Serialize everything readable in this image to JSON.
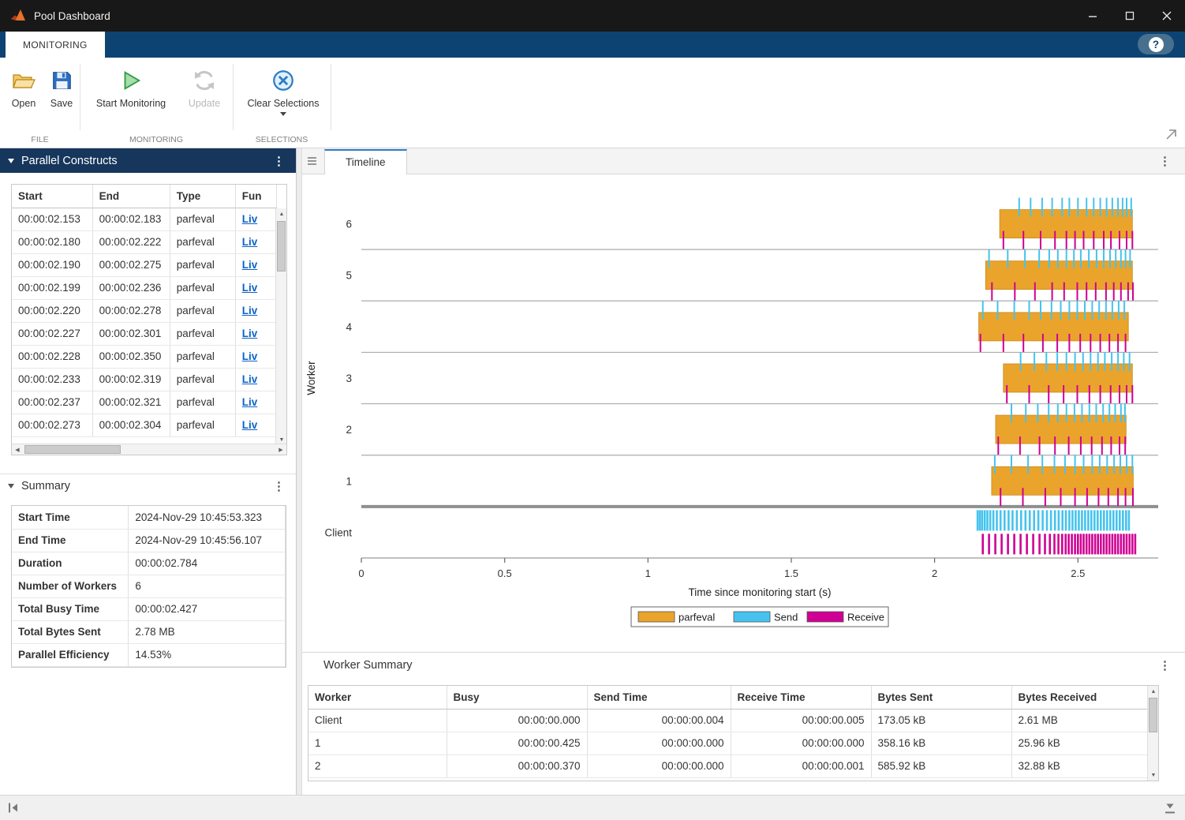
{
  "window": {
    "title": "Pool Dashboard"
  },
  "icons": {
    "kebab": "⋮",
    "help": "?",
    "arrow_up": "▲",
    "arrow_down": "▼",
    "arrow_left": "◀",
    "arrow_right": "▶"
  },
  "ribbon": {
    "active_tab": "MONITORING",
    "groups": [
      {
        "name": "FILE",
        "buttons": [
          {
            "label": "Open"
          },
          {
            "label": "Save"
          }
        ]
      },
      {
        "name": "MONITORING",
        "buttons": [
          {
            "label": "Start Monitoring"
          },
          {
            "label": "Update",
            "enabled": false
          }
        ]
      },
      {
        "name": "SELECTIONS",
        "buttons": [
          {
            "label": "Clear Selections",
            "dropdown": true
          }
        ]
      }
    ]
  },
  "parallel_constructs": {
    "title": "Parallel Constructs",
    "columns": [
      "Start",
      "End",
      "Type",
      "Fun"
    ],
    "rows": [
      [
        "00:00:02.153",
        "00:00:02.183",
        "parfeval",
        "Liv"
      ],
      [
        "00:00:02.180",
        "00:00:02.222",
        "parfeval",
        "Liv"
      ],
      [
        "00:00:02.190",
        "00:00:02.275",
        "parfeval",
        "Liv"
      ],
      [
        "00:00:02.199",
        "00:00:02.236",
        "parfeval",
        "Liv"
      ],
      [
        "00:00:02.220",
        "00:00:02.278",
        "parfeval",
        "Liv"
      ],
      [
        "00:00:02.227",
        "00:00:02.301",
        "parfeval",
        "Liv"
      ],
      [
        "00:00:02.228",
        "00:00:02.350",
        "parfeval",
        "Liv"
      ],
      [
        "00:00:02.233",
        "00:00:02.319",
        "parfeval",
        "Liv"
      ],
      [
        "00:00:02.237",
        "00:00:02.321",
        "parfeval",
        "Liv"
      ],
      [
        "00:00:02.273",
        "00:00:02.304",
        "parfeval",
        "Liv"
      ]
    ]
  },
  "summary": {
    "title": "Summary",
    "rows": [
      [
        "Start Time",
        "2024-Nov-29 10:45:53.323"
      ],
      [
        "End Time",
        "2024-Nov-29 10:45:56.107"
      ],
      [
        "Duration",
        "00:00:02.784"
      ],
      [
        "Number of Workers",
        "6"
      ],
      [
        "Total Busy Time",
        "00:00:02.427"
      ],
      [
        "Total Bytes Sent",
        "2.78 MB"
      ],
      [
        "Parallel Efficiency",
        "14.53%"
      ]
    ]
  },
  "timeline_panel": {
    "tab": "Timeline"
  },
  "chart_data": {
    "type": "timeline",
    "xlabel": "Time since monitoring start (s)",
    "ylabel": "Worker",
    "xlim": [
      0,
      2.78
    ],
    "xticks": [
      0,
      0.5,
      1,
      1.5,
      2,
      2.5
    ],
    "legend": [
      {
        "label": "parfeval",
        "color": "#eaa42b"
      },
      {
        "label": "Send",
        "color": "#45c3ee"
      },
      {
        "label": "Receive",
        "color": "#cf0093"
      }
    ],
    "rows": [
      {
        "label": "6",
        "bars": [
          [
            2.227,
            2.69
          ]
        ],
        "send": [
          2.295,
          2.335,
          2.375,
          2.41,
          2.445,
          2.47,
          2.5,
          2.53,
          2.555,
          2.578,
          2.6,
          2.62,
          2.64,
          2.656,
          2.67,
          2.686
        ],
        "receive": [
          2.24,
          2.31,
          2.37,
          2.42,
          2.46,
          2.49,
          2.52,
          2.555,
          2.59,
          2.615,
          2.645,
          2.67,
          2.69
        ]
      },
      {
        "label": "5",
        "bars": [
          [
            2.178,
            2.69
          ]
        ],
        "send": [
          2.19,
          2.255,
          2.315,
          2.365,
          2.4,
          2.43,
          2.46,
          2.486,
          2.51,
          2.538,
          2.565,
          2.59,
          2.612,
          2.632,
          2.65,
          2.666,
          2.682
        ],
        "receive": [
          2.2,
          2.28,
          2.35,
          2.41,
          2.452,
          2.498,
          2.53,
          2.562,
          2.598,
          2.625,
          2.65,
          2.675,
          2.692
        ]
      },
      {
        "label": "4",
        "bars": [
          [
            2.154,
            2.676
          ]
        ],
        "send": [
          2.168,
          2.22,
          2.278,
          2.33,
          2.37,
          2.408,
          2.44,
          2.47,
          2.498,
          2.524,
          2.55,
          2.574,
          2.598,
          2.62,
          2.642,
          2.662
        ],
        "receive": [
          2.16,
          2.24,
          2.31,
          2.378,
          2.428,
          2.47,
          2.508,
          2.544,
          2.578,
          2.61,
          2.64,
          2.666
        ]
      },
      {
        "label": "3",
        "bars": [
          [
            2.24,
            2.69
          ]
        ],
        "send": [
          2.3,
          2.348,
          2.39,
          2.428,
          2.46,
          2.49,
          2.518,
          2.544,
          2.57,
          2.594,
          2.618,
          2.64,
          2.66,
          2.68
        ],
        "receive": [
          2.252,
          2.33,
          2.398,
          2.45,
          2.498,
          2.54,
          2.578,
          2.614,
          2.645,
          2.67,
          2.69
        ]
      },
      {
        "label": "2",
        "bars": [
          [
            2.213,
            2.668
          ]
        ],
        "send": [
          2.268,
          2.318,
          2.36,
          2.398,
          2.43,
          2.46,
          2.488,
          2.514,
          2.54,
          2.564,
          2.588,
          2.61,
          2.63,
          2.65,
          2.664
        ],
        "receive": [
          2.222,
          2.298,
          2.366,
          2.42,
          2.468,
          2.51,
          2.548,
          2.584,
          2.616,
          2.645,
          2.665
        ]
      },
      {
        "label": "1",
        "bars": [
          [
            2.199,
            2.693
          ]
        ],
        "send": [
          2.21,
          2.268,
          2.326,
          2.376,
          2.418,
          2.455,
          2.49,
          2.52,
          2.55,
          2.576,
          2.602,
          2.626,
          2.648,
          2.67,
          2.69
        ],
        "receive": [
          2.23,
          2.308,
          2.386,
          2.44,
          2.49,
          2.532,
          2.572,
          2.606,
          2.64,
          2.666,
          2.692
        ]
      },
      {
        "label": "Client",
        "bars": [],
        "send": [
          2.15,
          2.158,
          2.166,
          2.175,
          2.184,
          2.194,
          2.205,
          2.217,
          2.23,
          2.244,
          2.258,
          2.272,
          2.287,
          2.302,
          2.317,
          2.332,
          2.347,
          2.362,
          2.377,
          2.392,
          2.406,
          2.42,
          2.433,
          2.446,
          2.458,
          2.47,
          2.481,
          2.492,
          2.503,
          2.514,
          2.525,
          2.536,
          2.547,
          2.558,
          2.569,
          2.58,
          2.591,
          2.602,
          2.613,
          2.624,
          2.635,
          2.646,
          2.657,
          2.668,
          2.678
        ],
        "receive": [
          2.168,
          2.19,
          2.212,
          2.234,
          2.256,
          2.278,
          2.3,
          2.322,
          2.344,
          2.366,
          2.385,
          2.402,
          2.418,
          2.432,
          2.445,
          2.457,
          2.468,
          2.479,
          2.49,
          2.5,
          2.51,
          2.52,
          2.53,
          2.54,
          2.55,
          2.56,
          2.57,
          2.58,
          2.59,
          2.6,
          2.61,
          2.62,
          2.63,
          2.64,
          2.65,
          2.66,
          2.67,
          2.68,
          2.69,
          2.7
        ]
      }
    ]
  },
  "worker_summary": {
    "title": "Worker Summary",
    "columns": [
      "Worker",
      "Busy",
      "Send Time",
      "Receive Time",
      "Bytes Sent",
      "Bytes Received"
    ],
    "align": [
      "left",
      "right",
      "right",
      "right",
      "left",
      "left"
    ],
    "rows": [
      [
        "Client",
        "00:00:00.000",
        "00:00:00.004",
        "00:00:00.005",
        "173.05 kB",
        "2.61 MB"
      ],
      [
        "1",
        "00:00:00.425",
        "00:00:00.000",
        "00:00:00.000",
        "358.16 kB",
        "25.96 kB"
      ],
      [
        "2",
        "00:00:00.370",
        "00:00:00.000",
        "00:00:00.001",
        "585.92 kB",
        "32.88 kB"
      ]
    ]
  }
}
